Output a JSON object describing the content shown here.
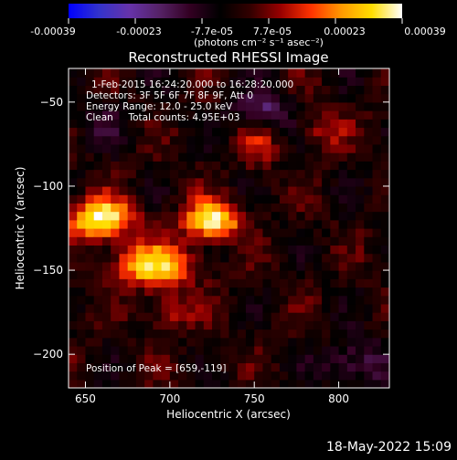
{
  "colorbar": {
    "colors": [
      "#0000ff",
      "#3333cc",
      "#6633aa",
      "#552266",
      "#330022",
      "#000000",
      "#330000",
      "#990000",
      "#ff3300",
      "#ff9900",
      "#ffdd00",
      "#ffffff"
    ],
    "tick_labels": [
      "-0.00039",
      "-0.00023",
      "-7.7e-05",
      "7.7e-05",
      "0.00023",
      "0.00039"
    ],
    "unit_label": "(photons cm⁻² s⁻¹ asec⁻²)"
  },
  "chart_data": {
    "type": "heatmap",
    "title": "Reconstructed RHESSI Image",
    "xlabel": "Heliocentric X (arcsec)",
    "ylabel": "Heliocentric Y (arcsec)",
    "xlim": [
      640,
      830
    ],
    "ylim": [
      -220,
      -30
    ],
    "x_ticks": [
      650,
      700,
      750,
      800
    ],
    "y_ticks": [
      -50,
      -100,
      -150,
      -200
    ],
    "color_range": [
      -0.00039,
      0.00039
    ],
    "annotations": [
      "1-Feb-2015 16:24:20.000 to 16:28:20.000",
      "Detectors: 3F 5F 6F 7F 8F 9F, Att 0",
      "Energy Range: 12.0 - 25.0 keV",
      "Clean     Total counts: 4.95E+03"
    ],
    "peak_label": "Position of Peak = [659,-119]",
    "sources": [
      {
        "x": 659,
        "y": -119,
        "peak": 0.00039,
        "sx": 13,
        "sy": 8
      },
      {
        "x": 725,
        "y": -120,
        "peak": 0.00036,
        "sx": 12,
        "sy": 8
      },
      {
        "x": 690,
        "y": -147,
        "peak": 0.00032,
        "sx": 16,
        "sy": 9
      },
      {
        "x": 700,
        "y": -175,
        "peak": 0.00014,
        "sx": 10,
        "sy": 8
      },
      {
        "x": 752,
        "y": -75,
        "peak": 0.00012,
        "sx": 8,
        "sy": 9
      },
      {
        "x": 790,
        "y": -65,
        "peak": 0.00011,
        "sx": 10,
        "sy": 9
      }
    ],
    "negative_regions": [
      {
        "x": 755,
        "y": -55,
        "peak": -0.00018,
        "sx": 12,
        "sy": 8
      },
      {
        "x": 810,
        "y": -205,
        "peak": -0.00015,
        "sx": 14,
        "sy": 10
      },
      {
        "x": 660,
        "y": -60,
        "peak": -8e-05,
        "sx": 12,
        "sy": 10
      }
    ]
  },
  "footer": {
    "timestamp": "18-May-2022 15:09"
  }
}
